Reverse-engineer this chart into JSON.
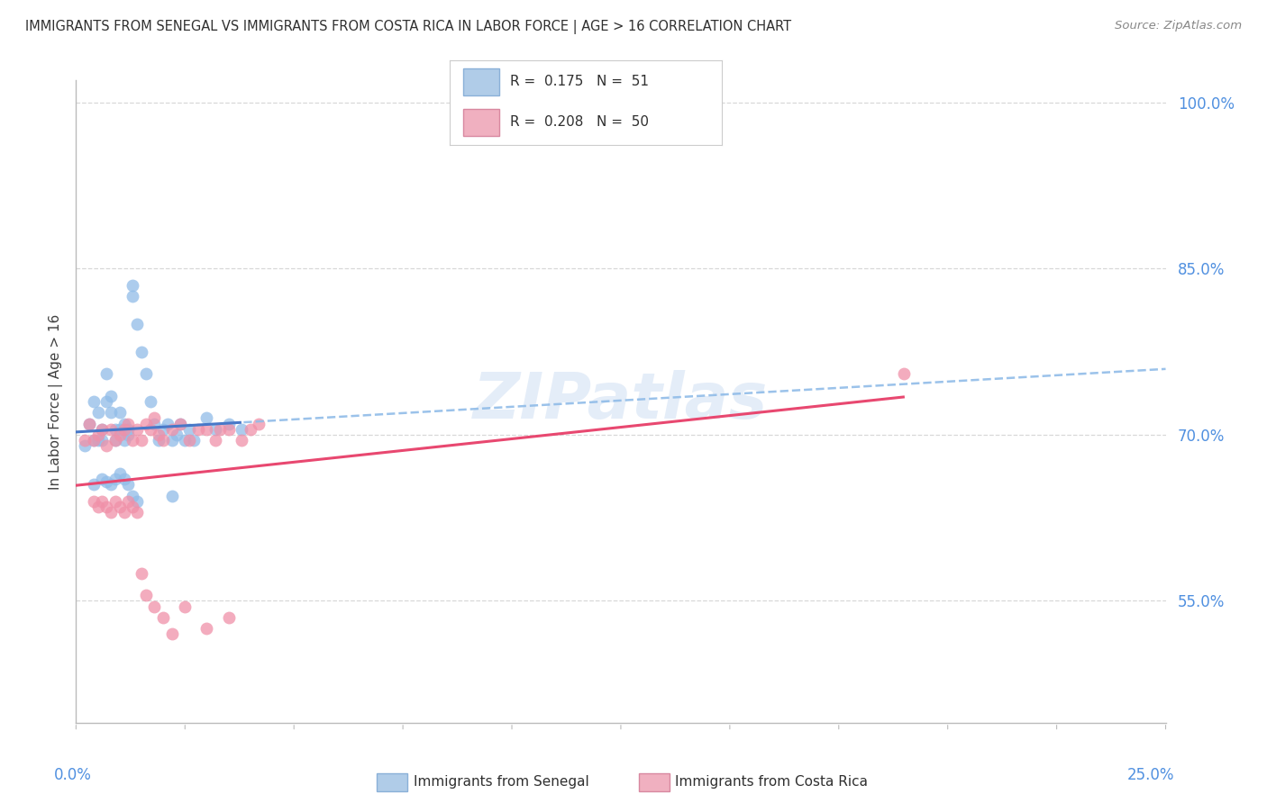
{
  "title": "IMMIGRANTS FROM SENEGAL VS IMMIGRANTS FROM COSTA RICA IN LABOR FORCE | AGE > 16 CORRELATION CHART",
  "source": "Source: ZipAtlas.com",
  "ylabel": "In Labor Force | Age > 16",
  "watermark": "ZIPatlas",
  "xmin": 0.0,
  "xmax": 0.25,
  "ymin": 0.44,
  "ymax": 1.02,
  "ytick_vals": [
    0.55,
    0.7,
    0.85,
    1.0
  ],
  "ytick_labels": [
    "55.0%",
    "70.0%",
    "85.0%",
    "100.0%"
  ],
  "senegal_color": "#90bce8",
  "costa_rica_color": "#f090a8",
  "trend_senegal_color": "#4878c8",
  "trend_costa_rica_color": "#e84870",
  "trend_senegal_dash_color": "#90bce8",
  "background_color": "#ffffff",
  "grid_color": "#d8d8d8",
  "title_color": "#303030",
  "axis_label_color": "#5090e0",
  "legend_blue_color": "#b0cce8",
  "legend_pink_color": "#f0b0c0",
  "senegal_x": [
    0.002,
    0.003,
    0.004,
    0.004,
    0.005,
    0.005,
    0.006,
    0.006,
    0.007,
    0.007,
    0.008,
    0.008,
    0.009,
    0.009,
    0.01,
    0.01,
    0.011,
    0.011,
    0.012,
    0.012,
    0.013,
    0.013,
    0.014,
    0.015,
    0.016,
    0.017,
    0.018,
    0.019,
    0.02,
    0.021,
    0.022,
    0.023,
    0.024,
    0.025,
    0.026,
    0.027,
    0.03,
    0.032,
    0.035,
    0.038,
    0.004,
    0.006,
    0.007,
    0.008,
    0.009,
    0.01,
    0.011,
    0.012,
    0.013,
    0.014,
    0.022
  ],
  "senegal_y": [
    0.69,
    0.71,
    0.73,
    0.695,
    0.72,
    0.695,
    0.705,
    0.695,
    0.755,
    0.73,
    0.735,
    0.72,
    0.705,
    0.695,
    0.72,
    0.705,
    0.71,
    0.695,
    0.705,
    0.7,
    0.835,
    0.825,
    0.8,
    0.775,
    0.755,
    0.73,
    0.71,
    0.695,
    0.705,
    0.71,
    0.695,
    0.7,
    0.71,
    0.695,
    0.705,
    0.695,
    0.715,
    0.705,
    0.71,
    0.705,
    0.655,
    0.66,
    0.658,
    0.655,
    0.66,
    0.665,
    0.66,
    0.655,
    0.645,
    0.64,
    0.645
  ],
  "costa_rica_x": [
    0.002,
    0.003,
    0.004,
    0.005,
    0.006,
    0.007,
    0.008,
    0.009,
    0.01,
    0.011,
    0.012,
    0.013,
    0.014,
    0.015,
    0.016,
    0.017,
    0.018,
    0.019,
    0.02,
    0.022,
    0.024,
    0.026,
    0.028,
    0.03,
    0.032,
    0.033,
    0.035,
    0.038,
    0.04,
    0.042,
    0.004,
    0.005,
    0.006,
    0.007,
    0.008,
    0.009,
    0.01,
    0.011,
    0.012,
    0.013,
    0.014,
    0.015,
    0.016,
    0.018,
    0.02,
    0.022,
    0.025,
    0.03,
    0.035,
    0.19
  ],
  "costa_rica_y": [
    0.695,
    0.71,
    0.695,
    0.7,
    0.705,
    0.69,
    0.705,
    0.695,
    0.7,
    0.705,
    0.71,
    0.695,
    0.705,
    0.695,
    0.71,
    0.705,
    0.715,
    0.7,
    0.695,
    0.705,
    0.71,
    0.695,
    0.705,
    0.705,
    0.695,
    0.705,
    0.705,
    0.695,
    0.705,
    0.71,
    0.64,
    0.635,
    0.64,
    0.635,
    0.63,
    0.64,
    0.635,
    0.63,
    0.64,
    0.635,
    0.63,
    0.575,
    0.555,
    0.545,
    0.535,
    0.52,
    0.545,
    0.525,
    0.535,
    0.755
  ],
  "R_senegal": "0.175",
  "N_senegal": "51",
  "R_costa_rica": "0.208",
  "N_costa_rica": "50"
}
